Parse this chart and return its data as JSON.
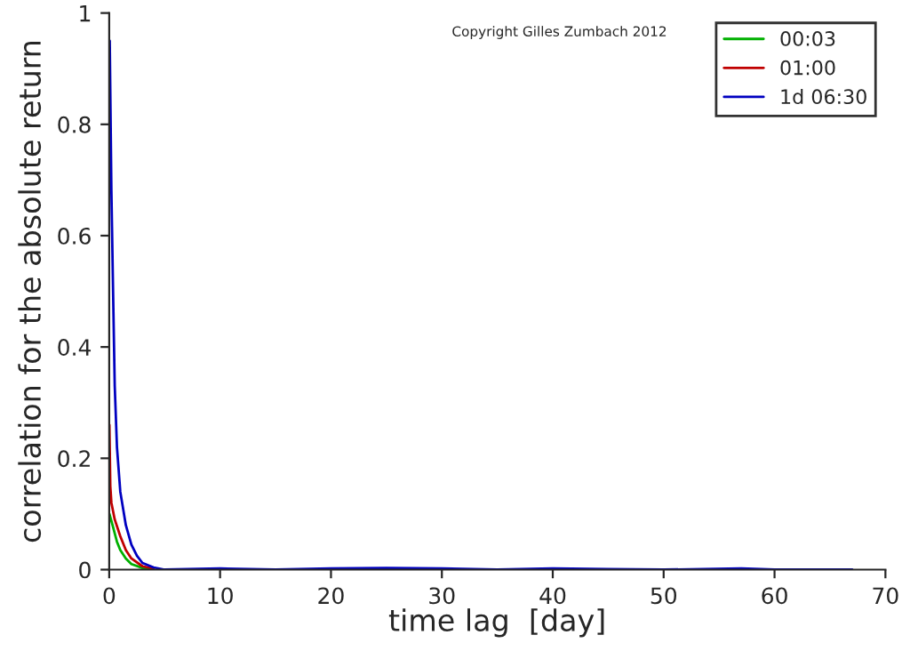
{
  "chart_data": {
    "type": "line",
    "xlabel": "time lag  [day]",
    "ylabel": "correlation for the absolute return",
    "annotations": [
      "Copyright Gilles Zumbach 2012"
    ],
    "xlim": [
      0,
      70
    ],
    "xticks": [
      0,
      10,
      20,
      30,
      40,
      50,
      60,
      70
    ],
    "ylim": [
      0,
      1
    ],
    "yticks": [
      0,
      0.2,
      0.4,
      0.6,
      0.8,
      1
    ],
    "grid": false,
    "legend": "top right",
    "line_style": "solid",
    "marker": "none",
    "series": [
      {
        "name": "00:03",
        "color": "#00b000",
        "x": [
          0.02,
          0.3,
          0.7,
          1,
          1.5,
          2,
          3,
          4
        ],
        "values": [
          0.1,
          0.08,
          0.05,
          0.035,
          0.02,
          0.01,
          0.003,
          0.001
        ]
      },
      {
        "name": "01:00",
        "color": "#c00000",
        "x": [
          0.02,
          0.1,
          0.2,
          0.5,
          1,
          1.5,
          2,
          3,
          4
        ],
        "values": [
          0.26,
          0.15,
          0.12,
          0.09,
          0.06,
          0.035,
          0.02,
          0.006,
          0.002
        ]
      },
      {
        "name": "1d 06:30",
        "color": "#0000c0",
        "x": [
          0.05,
          0.2,
          0.35,
          0.5,
          0.7,
          1,
          1.5,
          2,
          2.5,
          3,
          4,
          5,
          10,
          15,
          20,
          25,
          30,
          35,
          40,
          45,
          50,
          57,
          60,
          67
        ],
        "values": [
          0.95,
          0.68,
          0.5,
          0.33,
          0.22,
          0.14,
          0.08,
          0.045,
          0.025,
          0.012,
          0.004,
          0,
          0.002,
          0,
          0.002,
          0.003,
          0.002,
          0,
          0.002,
          0.001,
          0,
          0.002,
          0,
          0
        ]
      }
    ]
  }
}
